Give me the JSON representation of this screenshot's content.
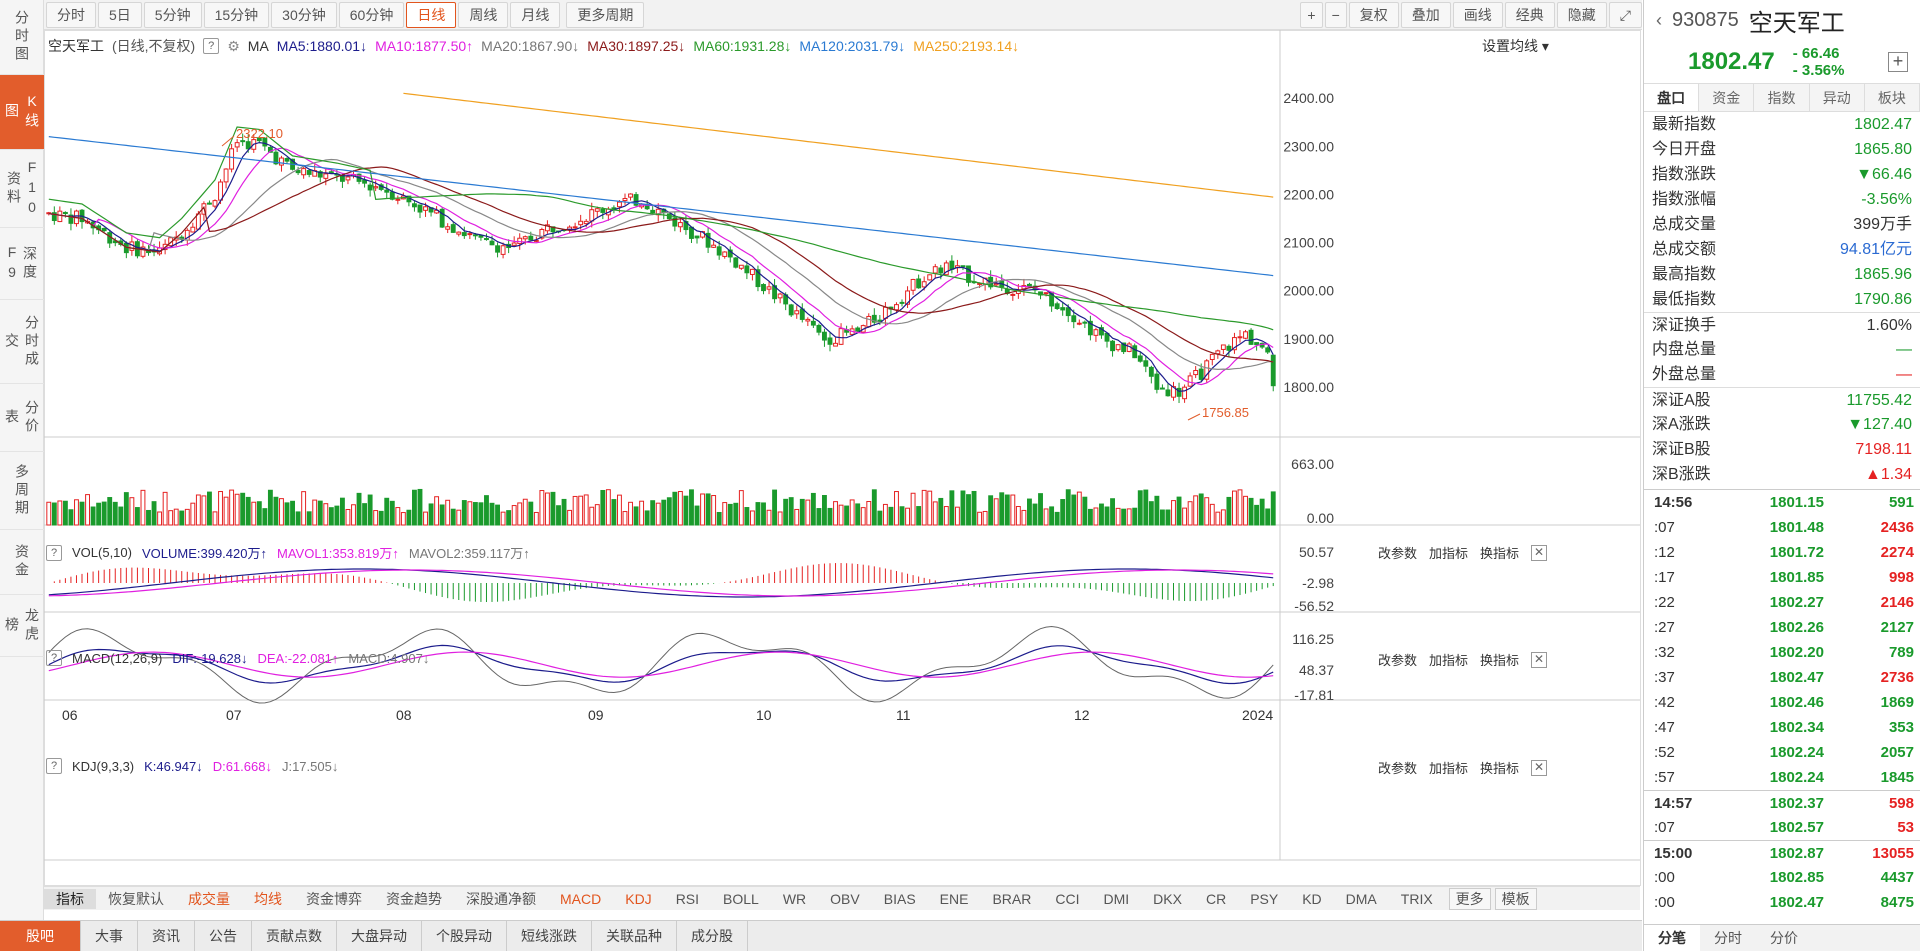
{
  "left_nav": [
    "分时图",
    "K线图",
    "F10资料",
    "深度F9",
    "分时成交",
    "分价表",
    "多周期",
    "资金",
    "龙虎榜"
  ],
  "toolbar": {
    "periods": [
      "分时",
      "5日",
      "5分钟",
      "15分钟",
      "30分钟",
      "60分钟",
      "日线",
      "周线",
      "月线",
      "更多周期"
    ],
    "active": "日线",
    "right": [
      "+",
      "−",
      "复权",
      "叠加",
      "画线",
      "经典",
      "隐藏"
    ]
  },
  "ma_line": {
    "name": "空天军工",
    "mode": "(日线,不复权)",
    "ma_label": "MA",
    "ma5": "MA5:1880.01↓",
    "ma10": "MA10:1877.50↑",
    "ma20": "MA20:1867.90↓",
    "ma30": "MA30:1897.25↓",
    "ma60": "MA60:1931.28↓",
    "ma120": "MA120:2031.79↓",
    "ma250": "MA250:2193.14↓",
    "settings": "设置均线"
  },
  "price_axis": [
    "2400.00",
    "2300.00",
    "2200.00",
    "2100.00",
    "2000.00",
    "1900.00",
    "1800.00"
  ],
  "annotations": {
    "high": "2322.10",
    "low": "1756.85"
  },
  "vol": {
    "title": "VOL(5,10)",
    "volume": "VOLUME:399.420万↑",
    "mavol1": "MAVOL1:353.819万↑",
    "mavol2": "MAVOL2:359.117万↑",
    "axis_top": "663.00",
    "axis_bottom": "0.00"
  },
  "macd": {
    "title": "MACD(12,26,9)",
    "dif": "DIF:-19.628↓",
    "dea": "DEA:-22.081↑",
    "macd": "MACD:4.907↓",
    "axis": [
      "50.57",
      "-2.98",
      "-56.52"
    ]
  },
  "kdj": {
    "title": "KDJ(9,3,3)",
    "k": "K:46.947↓",
    "d": "D:61.668↓",
    "j": "J:17.505↓",
    "axis": [
      "116.25",
      "48.37",
      "-17.81"
    ]
  },
  "sub_buttons": [
    "改参数",
    "加指标",
    "换指标"
  ],
  "x_axis": [
    "06",
    "07",
    "08",
    "09",
    "10",
    "11",
    "12",
    "2024"
  ],
  "indicator_tabs": [
    "指标",
    "恢复默认",
    "成交量",
    "均线",
    "资金博弈",
    "资金趋势",
    "深股通净额",
    "MACD",
    "KDJ",
    "RSI",
    "BOLL",
    "WR",
    "OBV",
    "BIAS",
    "ENE",
    "BRAR",
    "CCI",
    "DMI",
    "DKX",
    "CR",
    "PSY",
    "KD",
    "DMA",
    "TRIX",
    "更多",
    "模板"
  ],
  "bottom_tabs": [
    "股吧",
    "大事",
    "资讯",
    "公告",
    "贡献点数",
    "大盘异动",
    "个股异动",
    "短线涨跌",
    "关联品种",
    "成分股"
  ],
  "right_panel": {
    "code": "930875",
    "name": "空天军工",
    "price": "1802.47",
    "change": "- 66.46",
    "pct": "- 3.56%",
    "tabs": [
      "盘口",
      "资金",
      "指数",
      "异动",
      "板块"
    ],
    "rows": [
      {
        "label": "最新指数",
        "value": "1802.47",
        "color": "green"
      },
      {
        "label": "今日开盘",
        "value": "1865.80",
        "color": "green"
      },
      {
        "label": "指数涨跌",
        "value": "▼66.46",
        "color": "green"
      },
      {
        "label": "指数涨幅",
        "value": "-3.56%",
        "color": "green"
      },
      {
        "label": "总成交量",
        "value": "399万手",
        "color": "dark"
      },
      {
        "label": "总成交额",
        "value": "94.81亿元",
        "color": "blue"
      },
      {
        "label": "最高指数",
        "value": "1865.96",
        "color": "green"
      },
      {
        "label": "最低指数",
        "value": "1790.86",
        "color": "green"
      },
      {
        "label": "深证换手",
        "value": "1.60%",
        "color": "dark"
      },
      {
        "label": "内盘总量",
        "value": "—",
        "color": "green"
      },
      {
        "label": "外盘总量",
        "value": "—",
        "color": "red"
      },
      {
        "label": "深证A股",
        "value": "11755.42",
        "color": "green"
      },
      {
        "label": "深A涨跌",
        "value": "▼127.40",
        "color": "green"
      },
      {
        "label": "深证B股",
        "value": "7198.11",
        "color": "red"
      },
      {
        "label": "深B涨跌",
        "value": "▲1.34",
        "color": "red"
      }
    ],
    "ticks": [
      {
        "t": "14:56",
        "p": "1801.15",
        "v": "591",
        "vc": "green"
      },
      {
        "t": ":07",
        "p": "1801.48",
        "v": "2436",
        "vc": "red"
      },
      {
        "t": ":12",
        "p": "1801.72",
        "v": "2274",
        "vc": "red"
      },
      {
        "t": ":17",
        "p": "1801.85",
        "v": "998",
        "vc": "red"
      },
      {
        "t": ":22",
        "p": "1802.27",
        "v": "2146",
        "vc": "red"
      },
      {
        "t": ":27",
        "p": "1802.26",
        "v": "2127",
        "vc": "green"
      },
      {
        "t": ":32",
        "p": "1802.20",
        "v": "789",
        "vc": "green"
      },
      {
        "t": ":37",
        "p": "1802.47",
        "v": "2736",
        "vc": "red"
      },
      {
        "t": ":42",
        "p": "1802.46",
        "v": "1869",
        "vc": "green"
      },
      {
        "t": ":47",
        "p": "1802.34",
        "v": "353",
        "vc": "green"
      },
      {
        "t": ":52",
        "p": "1802.24",
        "v": "2057",
        "vc": "green"
      },
      {
        "t": ":57",
        "p": "1802.24",
        "v": "1845",
        "vc": "green"
      },
      {
        "t": "14:57",
        "p": "1802.37",
        "v": "598",
        "vc": "red"
      },
      {
        "t": ":07",
        "p": "1802.57",
        "v": "53",
        "vc": "red"
      },
      {
        "t": "15:00",
        "p": "1802.87",
        "v": "13055",
        "vc": "red"
      },
      {
        "t": ":00",
        "p": "1802.85",
        "v": "4437",
        "vc": "green"
      },
      {
        "t": ":00",
        "p": "1802.47",
        "v": "8475",
        "vc": "green"
      }
    ],
    "bottom_tabs": [
      "分笔",
      "分时",
      "分价"
    ]
  },
  "colors": {
    "up": "#e52222",
    "down": "#1a9a2c",
    "accent": "#e25d2c",
    "ma5": "#1c1c8c",
    "ma10": "#e020e0",
    "ma20": "#888888",
    "ma30": "#8b1a1a",
    "ma60": "#2b9a2b",
    "ma120": "#2a7ad2",
    "ma250": "#f0a020"
  }
}
